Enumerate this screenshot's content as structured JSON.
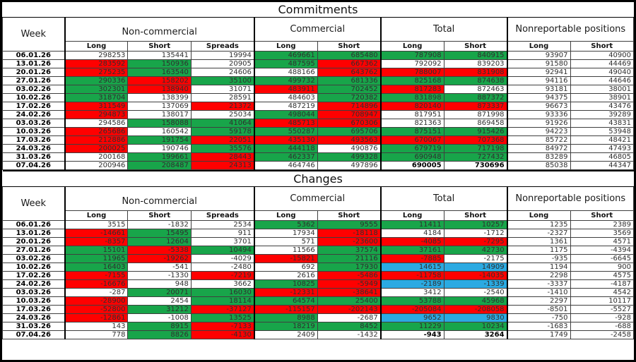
{
  "commitments_title": "Commitments",
  "changes_title": "Changes",
  "header": {
    "week": "Week",
    "groups": [
      {
        "label": "Non-commercial",
        "cols": [
          "Long",
          "Short",
          "Spreads"
        ]
      },
      {
        "label": "Commercial",
        "cols": [
          "Long",
          "Short"
        ]
      },
      {
        "label": "Total",
        "cols": [
          "Long",
          "Short"
        ]
      },
      {
        "label": "Nonreportable positions",
        "cols": [
          "Long",
          "Short"
        ]
      }
    ]
  },
  "colors": {
    "increase_green": "#18A54A",
    "decrease_red": "#FF0000",
    "flip_blue": "#2BAAE2",
    "border_black": "#000000"
  },
  "commitments": {
    "rows": [
      {
        "week": "06.01.26",
        "cells": [
          [
            "298253",
            "w"
          ],
          [
            "135441",
            "w"
          ],
          [
            "19994",
            "w"
          ],
          [
            "469661",
            "g"
          ],
          [
            "685480",
            "g"
          ],
          [
            "787908",
            "g"
          ],
          [
            "840915",
            "g"
          ],
          [
            "93907",
            "w"
          ],
          [
            "40900",
            "w"
          ]
        ]
      },
      {
        "week": "13.01.26",
        "cells": [
          [
            "283592",
            "r"
          ],
          [
            "150936",
            "g"
          ],
          [
            "20905",
            "w"
          ],
          [
            "487595",
            "g"
          ],
          [
            "667362",
            "r"
          ],
          [
            "792092",
            "w"
          ],
          [
            "839203",
            "w"
          ],
          [
            "91580",
            "w"
          ],
          [
            "44469",
            "w"
          ]
        ]
      },
      {
        "week": "20.01.26",
        "cells": [
          [
            "275235",
            "r"
          ],
          [
            "163540",
            "g"
          ],
          [
            "24606",
            "w"
          ],
          [
            "488166",
            "w"
          ],
          [
            "643762",
            "r"
          ],
          [
            "788007",
            "r"
          ],
          [
            "831908",
            "r"
          ],
          [
            "92941",
            "w"
          ],
          [
            "49040",
            "w"
          ]
        ]
      },
      {
        "week": "27.01.26",
        "cells": [
          [
            "290336",
            "g"
          ],
          [
            "158202",
            "r"
          ],
          [
            "35100",
            "g"
          ],
          [
            "499732",
            "g"
          ],
          [
            "681336",
            "g"
          ],
          [
            "825168",
            "g"
          ],
          [
            "874638",
            "g"
          ],
          [
            "94116",
            "w"
          ],
          [
            "44646",
            "w"
          ]
        ]
      },
      {
        "week": "03.02.26",
        "cells": [
          [
            "302301",
            "g"
          ],
          [
            "138940",
            "r"
          ],
          [
            "31071",
            "w"
          ],
          [
            "483911",
            "r"
          ],
          [
            "702452",
            "g"
          ],
          [
            "817283",
            "r"
          ],
          [
            "872463",
            "w"
          ],
          [
            "93181",
            "w"
          ],
          [
            "38001",
            "w"
          ]
        ]
      },
      {
        "week": "10.02.26",
        "cells": [
          [
            "318704",
            "g"
          ],
          [
            "138399",
            "w"
          ],
          [
            "28591",
            "w"
          ],
          [
            "484603",
            "w"
          ],
          [
            "720382",
            "g"
          ],
          [
            "831898",
            "g"
          ],
          [
            "887372",
            "g"
          ],
          [
            "94375",
            "w"
          ],
          [
            "38901",
            "w"
          ]
        ]
      },
      {
        "week": "17.02.26",
        "cells": [
          [
            "311549",
            "r"
          ],
          [
            "137069",
            "w"
          ],
          [
            "21372",
            "r"
          ],
          [
            "487219",
            "w"
          ],
          [
            "714896",
            "r"
          ],
          [
            "820140",
            "r"
          ],
          [
            "873337",
            "r"
          ],
          [
            "96673",
            "w"
          ],
          [
            "43476",
            "w"
          ]
        ]
      },
      {
        "week": "24.02.26",
        "cells": [
          [
            "294873",
            "r"
          ],
          [
            "138017",
            "w"
          ],
          [
            "25034",
            "w"
          ],
          [
            "498044",
            "g"
          ],
          [
            "708947",
            "r"
          ],
          [
            "817951",
            "w"
          ],
          [
            "871998",
            "w"
          ],
          [
            "93336",
            "w"
          ],
          [
            "39289",
            "w"
          ]
        ]
      },
      {
        "week": "03.03.26",
        "cells": [
          [
            "294586",
            "w"
          ],
          [
            "158088",
            "g"
          ],
          [
            "41064",
            "g"
          ],
          [
            "485713",
            "r"
          ],
          [
            "670306",
            "r"
          ],
          [
            "821363",
            "w"
          ],
          [
            "869458",
            "w"
          ],
          [
            "91926",
            "w"
          ],
          [
            "43831",
            "w"
          ]
        ]
      },
      {
        "week": "10.03.26",
        "cells": [
          [
            "265686",
            "r"
          ],
          [
            "160542",
            "w"
          ],
          [
            "59178",
            "g"
          ],
          [
            "550287",
            "g"
          ],
          [
            "695706",
            "g"
          ],
          [
            "875151",
            "g"
          ],
          [
            "915426",
            "g"
          ],
          [
            "94223",
            "w"
          ],
          [
            "53948",
            "w"
          ]
        ]
      },
      {
        "week": "17.03.26",
        "cells": [
          [
            "212886",
            "r"
          ],
          [
            "191754",
            "g"
          ],
          [
            "22051",
            "r"
          ],
          [
            "435130",
            "r"
          ],
          [
            "493563",
            "r"
          ],
          [
            "670067",
            "r"
          ],
          [
            "707368",
            "r"
          ],
          [
            "85722",
            "w"
          ],
          [
            "48421",
            "w"
          ]
        ]
      },
      {
        "week": "24.03.26",
        "cells": [
          [
            "200025",
            "r"
          ],
          [
            "190746",
            "w"
          ],
          [
            "35576",
            "g"
          ],
          [
            "444118",
            "g"
          ],
          [
            "490876",
            "w"
          ],
          [
            "679719",
            "g"
          ],
          [
            "717198",
            "g"
          ],
          [
            "84972",
            "w"
          ],
          [
            "47493",
            "w"
          ]
        ]
      },
      {
        "week": "31.03.26",
        "cells": [
          [
            "200168",
            "w"
          ],
          [
            "199661",
            "g"
          ],
          [
            "28443",
            "r"
          ],
          [
            "462337",
            "g"
          ],
          [
            "499328",
            "g"
          ],
          [
            "690948",
            "g"
          ],
          [
            "727432",
            "g"
          ],
          [
            "83289",
            "w"
          ],
          [
            "46805",
            "w"
          ]
        ]
      },
      {
        "week": "07.04.26",
        "cells": [
          [
            "200946",
            "w"
          ],
          [
            "208487",
            "g"
          ],
          [
            "24313",
            "r"
          ],
          [
            "464746",
            "w"
          ],
          [
            "497896",
            "w"
          ],
          [
            "690005",
            "w",
            "bold"
          ],
          [
            "730696",
            "w",
            "bold"
          ],
          [
            "85038",
            "w"
          ],
          [
            "44347",
            "w"
          ]
        ]
      }
    ]
  },
  "changes": {
    "rows": [
      {
        "week": "06.01.26",
        "cells": [
          [
            "3515",
            "w"
          ],
          [
            "-1832",
            "w"
          ],
          [
            "2534",
            "w"
          ],
          [
            "5362",
            "g"
          ],
          [
            "9555",
            "g"
          ],
          [
            "11411",
            "g"
          ],
          [
            "10257",
            "g"
          ],
          [
            "1235",
            "w"
          ],
          [
            "2389",
            "w"
          ]
        ]
      },
      {
        "week": "13.01.26",
        "cells": [
          [
            "-14661",
            "r"
          ],
          [
            "15495",
            "g"
          ],
          [
            "911",
            "w"
          ],
          [
            "17934",
            "w"
          ],
          [
            "-18118",
            "r"
          ],
          [
            "4184",
            "w"
          ],
          [
            "-1712",
            "w"
          ],
          [
            "-2327",
            "w"
          ],
          [
            "3569",
            "w"
          ]
        ]
      },
      {
        "week": "20.01.26",
        "cells": [
          [
            "-8357",
            "r"
          ],
          [
            "12604",
            "g"
          ],
          [
            "3701",
            "w"
          ],
          [
            "571",
            "w"
          ],
          [
            "-23600",
            "r"
          ],
          [
            "-4085",
            "r"
          ],
          [
            "-7295",
            "r"
          ],
          [
            "1361",
            "w"
          ],
          [
            "4571",
            "w"
          ]
        ]
      },
      {
        "week": "27.01.26",
        "cells": [
          [
            "15101",
            "g"
          ],
          [
            "-5338",
            "r"
          ],
          [
            "10494",
            "g"
          ],
          [
            "11566",
            "w"
          ],
          [
            "37574",
            "g"
          ],
          [
            "37161",
            "g"
          ],
          [
            "42730",
            "g"
          ],
          [
            "1175",
            "w"
          ],
          [
            "-4394",
            "w"
          ]
        ]
      },
      {
        "week": "03.02.26",
        "cells": [
          [
            "11965",
            "g"
          ],
          [
            "-19262",
            "r"
          ],
          [
            "-4029",
            "w"
          ],
          [
            "-15821",
            "r"
          ],
          [
            "21116",
            "g"
          ],
          [
            "-7885",
            "r"
          ],
          [
            "-2175",
            "w"
          ],
          [
            "-935",
            "w"
          ],
          [
            "-6645",
            "w"
          ]
        ]
      },
      {
        "week": "10.02.26",
        "cells": [
          [
            "16403",
            "g"
          ],
          [
            "-541",
            "w"
          ],
          [
            "-2480",
            "w"
          ],
          [
            "692",
            "w"
          ],
          [
            "17930",
            "g"
          ],
          [
            "14615",
            "b"
          ],
          [
            "14909",
            "b"
          ],
          [
            "1194",
            "w"
          ],
          [
            "900",
            "w"
          ]
        ]
      },
      {
        "week": "17.02.26",
        "cells": [
          [
            "-7155",
            "r"
          ],
          [
            "-1330",
            "w"
          ],
          [
            "-7219",
            "r"
          ],
          [
            "2616",
            "w"
          ],
          [
            "-5486",
            "r"
          ],
          [
            "-11758",
            "r"
          ],
          [
            "-14035",
            "r"
          ],
          [
            "2298",
            "w"
          ],
          [
            "4575",
            "w"
          ]
        ]
      },
      {
        "week": "24.02.26",
        "cells": [
          [
            "-16676",
            "r"
          ],
          [
            "948",
            "w"
          ],
          [
            "3662",
            "w"
          ],
          [
            "10825",
            "g"
          ],
          [
            "-5949",
            "r"
          ],
          [
            "-2189",
            "b"
          ],
          [
            "-1339",
            "b"
          ],
          [
            "-3337",
            "w"
          ],
          [
            "-4187",
            "w"
          ]
        ]
      },
      {
        "week": "03.03.26",
        "cells": [
          [
            "-287",
            "w"
          ],
          [
            "20071",
            "g"
          ],
          [
            "16030",
            "g"
          ],
          [
            "-12331",
            "r"
          ],
          [
            "-38641",
            "r"
          ],
          [
            "3412",
            "w"
          ],
          [
            "-2540",
            "w"
          ],
          [
            "-1410",
            "w"
          ],
          [
            "4542",
            "w"
          ]
        ]
      },
      {
        "week": "10.03.26",
        "cells": [
          [
            "-28900",
            "r"
          ],
          [
            "2454",
            "w"
          ],
          [
            "18114",
            "g"
          ],
          [
            "64574",
            "g"
          ],
          [
            "25400",
            "g"
          ],
          [
            "53788",
            "g"
          ],
          [
            "45968",
            "g"
          ],
          [
            "2297",
            "w"
          ],
          [
            "10117",
            "w"
          ]
        ]
      },
      {
        "week": "17.03.26",
        "cells": [
          [
            "-52800",
            "r"
          ],
          [
            "31212",
            "g"
          ],
          [
            "-37127",
            "r"
          ],
          [
            "-115157",
            "r"
          ],
          [
            "-202143",
            "r"
          ],
          [
            "-205084",
            "r"
          ],
          [
            "-208058",
            "r"
          ],
          [
            "-8501",
            "w"
          ],
          [
            "-5527",
            "w"
          ]
        ]
      },
      {
        "week": "24.03.26",
        "cells": [
          [
            "-12861",
            "r"
          ],
          [
            "-1008",
            "w"
          ],
          [
            "13525",
            "g"
          ],
          [
            "8988",
            "g"
          ],
          [
            "-2687",
            "w"
          ],
          [
            "9652",
            "b"
          ],
          [
            "9830",
            "b"
          ],
          [
            "-750",
            "w"
          ],
          [
            "-928",
            "w"
          ]
        ]
      },
      {
        "week": "31.03.26",
        "cells": [
          [
            "143",
            "w"
          ],
          [
            "8915",
            "g"
          ],
          [
            "-7133",
            "r"
          ],
          [
            "18219",
            "g"
          ],
          [
            "8452",
            "g"
          ],
          [
            "11229",
            "g"
          ],
          [
            "10234",
            "g"
          ],
          [
            "-1683",
            "w"
          ],
          [
            "-688",
            "w"
          ]
        ]
      },
      {
        "week": "07.04.26",
        "cells": [
          [
            "778",
            "w"
          ],
          [
            "8826",
            "g"
          ],
          [
            "-4130",
            "r"
          ],
          [
            "2409",
            "w"
          ],
          [
            "-1432",
            "w"
          ],
          [
            "-943",
            "w",
            "bold"
          ],
          [
            "3264",
            "w",
            "bold"
          ],
          [
            "1749",
            "w"
          ],
          [
            "-2458",
            "w"
          ]
        ]
      }
    ]
  }
}
